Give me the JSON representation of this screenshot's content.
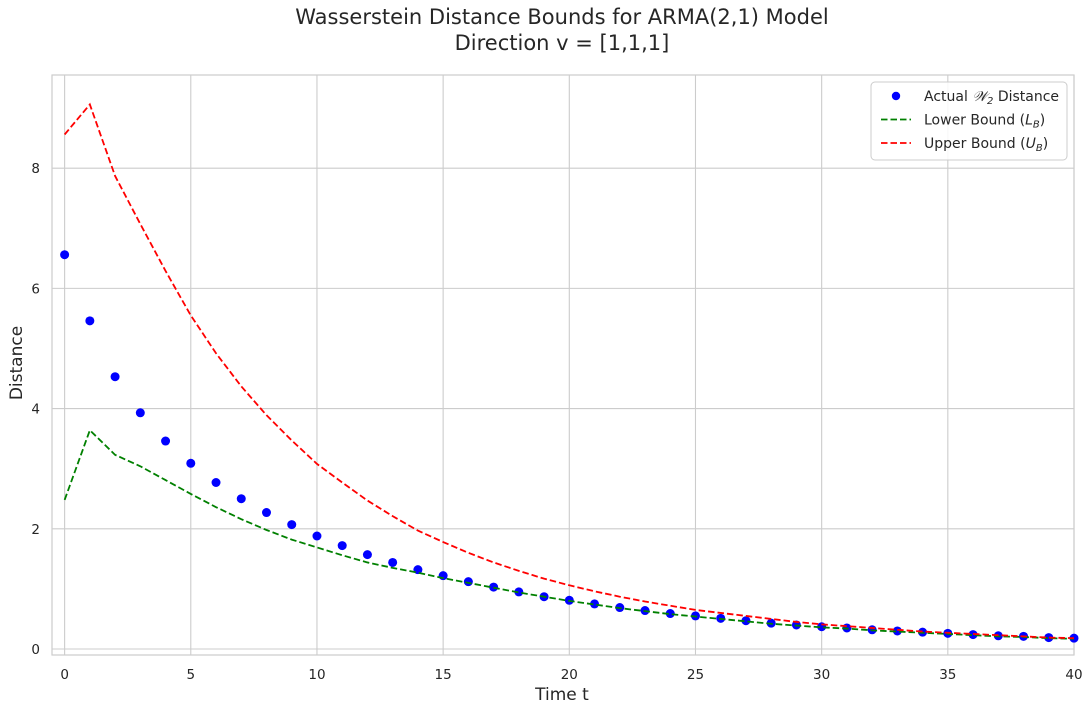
{
  "chart_data": {
    "type": "line",
    "title": "Wasserstein Distance Bounds for ARMA(2,1) Model",
    "subtitle": "Direction v = [1,1,1]",
    "xlabel": "Time t",
    "ylabel": "Distance",
    "xlim": [
      -0.5,
      40
    ],
    "ylim": [
      -0.1,
      9.55
    ],
    "xticks": [
      0,
      5,
      10,
      15,
      20,
      25,
      30,
      35,
      40
    ],
    "yticks": [
      0,
      2,
      4,
      6,
      8
    ],
    "grid": true,
    "legend_position": "top-right",
    "x": [
      0,
      1,
      2,
      3,
      4,
      5,
      6,
      7,
      8,
      9,
      10,
      11,
      12,
      13,
      14,
      15,
      16,
      17,
      18,
      19,
      20,
      21,
      22,
      23,
      24,
      25,
      26,
      27,
      28,
      29,
      30,
      31,
      32,
      33,
      34,
      35,
      36,
      37,
      38,
      39,
      40
    ],
    "series": [
      {
        "name": "Actual W2 Distance",
        "legend_prefix": "Actual ",
        "legend_math": "𝒲",
        "legend_sub": "2",
        "legend_suffix": " Distance",
        "style": "markers",
        "color": "#0000ff",
        "values": [
          6.56,
          5.46,
          4.53,
          3.93,
          3.46,
          3.09,
          2.77,
          2.5,
          2.27,
          2.07,
          1.88,
          1.72,
          1.57,
          1.44,
          1.32,
          1.22,
          1.12,
          1.03,
          0.95,
          0.87,
          0.81,
          0.75,
          0.69,
          0.64,
          0.59,
          0.55,
          0.51,
          0.47,
          0.43,
          0.4,
          0.37,
          0.35,
          0.32,
          0.3,
          0.28,
          0.26,
          0.24,
          0.22,
          0.21,
          0.19,
          0.18
        ]
      },
      {
        "name": "Lower Bound (L_B)",
        "legend_prefix": "Lower Bound (",
        "legend_math": "L",
        "legend_sub": "B",
        "legend_suffix": ")",
        "style": "dashed",
        "color": "#008000",
        "values": [
          2.48,
          3.64,
          3.23,
          3.04,
          2.81,
          2.58,
          2.36,
          2.16,
          1.98,
          1.82,
          1.69,
          1.56,
          1.44,
          1.35,
          1.27,
          1.18,
          1.1,
          1.02,
          0.94,
          0.87,
          0.8,
          0.74,
          0.68,
          0.63,
          0.58,
          0.54,
          0.5,
          0.46,
          0.42,
          0.39,
          0.36,
          0.34,
          0.31,
          0.29,
          0.27,
          0.25,
          0.23,
          0.21,
          0.2,
          0.18,
          0.17
        ]
      },
      {
        "name": "Upper Bound (U_B)",
        "legend_prefix": "Upper Bound (",
        "legend_math": "U",
        "legend_sub": "B",
        "legend_suffix": ")",
        "style": "dashed",
        "color": "#ff0000",
        "values": [
          8.56,
          9.06,
          7.87,
          7.07,
          6.29,
          5.55,
          4.92,
          4.37,
          3.89,
          3.47,
          3.08,
          2.77,
          2.47,
          2.21,
          1.97,
          1.78,
          1.6,
          1.44,
          1.3,
          1.17,
          1.06,
          0.96,
          0.87,
          0.79,
          0.72,
          0.65,
          0.6,
          0.55,
          0.5,
          0.45,
          0.41,
          0.38,
          0.35,
          0.32,
          0.29,
          0.27,
          0.25,
          0.23,
          0.21,
          0.19,
          0.18
        ]
      }
    ]
  }
}
